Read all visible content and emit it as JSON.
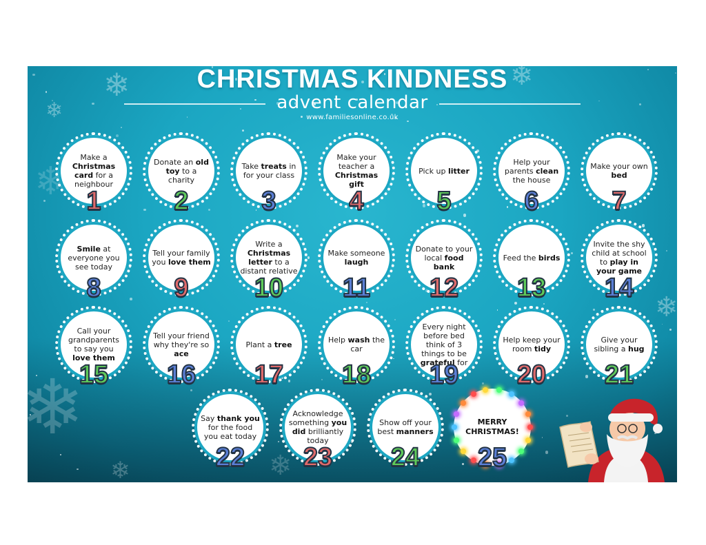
{
  "header": {
    "title": "CHRISTMAS KINDNESS",
    "subtitle": "advent calendar",
    "website": "www.familiesonline.co.uk"
  },
  "colors": {
    "background": "#1ba6c2",
    "number_blue": "#5b7fd6",
    "number_green": "#5fca5a",
    "number_red": "#e06a6a",
    "number_outline": "#233344"
  },
  "days": [
    {
      "number": "1",
      "color": "#e06a6a",
      "parts": [
        {
          "t": "Make a "
        },
        {
          "t": "Christmas card",
          "b": true
        },
        {
          "t": " for a neighbour"
        }
      ]
    },
    {
      "number": "2",
      "color": "#5fca5a",
      "parts": [
        {
          "t": "Donate an "
        },
        {
          "t": "old toy",
          "b": true
        },
        {
          "t": " to a charity"
        }
      ]
    },
    {
      "number": "3",
      "color": "#5b7fd6",
      "parts": [
        {
          "t": "Take "
        },
        {
          "t": "treats",
          "b": true
        },
        {
          "t": " in for your class"
        }
      ]
    },
    {
      "number": "4",
      "color": "#e06a6a",
      "parts": [
        {
          "t": "Make your teacher a "
        },
        {
          "t": "Christmas gift",
          "b": true
        }
      ]
    },
    {
      "number": "5",
      "color": "#5fca5a",
      "parts": [
        {
          "t": "Pick up "
        },
        {
          "t": "litter",
          "b": true
        }
      ]
    },
    {
      "number": "6",
      "color": "#5b7fd6",
      "parts": [
        {
          "t": "Help your parents "
        },
        {
          "t": "clean",
          "b": true
        },
        {
          "t": " the house"
        }
      ]
    },
    {
      "number": "7",
      "color": "#e06a6a",
      "parts": [
        {
          "t": "Make your own "
        },
        {
          "t": "bed",
          "b": true
        }
      ]
    },
    {
      "number": "8",
      "color": "#5b7fd6",
      "parts": [
        {
          "t": "Smile",
          "b": true
        },
        {
          "t": " at everyone you see today"
        }
      ]
    },
    {
      "number": "9",
      "color": "#e06a6a",
      "parts": [
        {
          "t": "Tell your family you "
        },
        {
          "t": "love them",
          "b": true
        }
      ]
    },
    {
      "number": "10",
      "color": "#5fca5a",
      "parts": [
        {
          "t": "Write a "
        },
        {
          "t": "Christmas letter",
          "b": true
        },
        {
          "t": " to a distant relative"
        }
      ]
    },
    {
      "number": "11",
      "color": "#5b7fd6",
      "parts": [
        {
          "t": "Make someone "
        },
        {
          "t": "laugh",
          "b": true
        }
      ]
    },
    {
      "number": "12",
      "color": "#e06a6a",
      "parts": [
        {
          "t": "Donate to your local "
        },
        {
          "t": "food bank",
          "b": true
        }
      ]
    },
    {
      "number": "13",
      "color": "#5fca5a",
      "parts": [
        {
          "t": "Feed the "
        },
        {
          "t": "birds",
          "b": true
        }
      ]
    },
    {
      "number": "14",
      "color": "#5b7fd6",
      "parts": [
        {
          "t": "Invite the shy child at school to "
        },
        {
          "t": "play in your game",
          "b": true
        }
      ]
    },
    {
      "number": "15",
      "color": "#5fca5a",
      "parts": [
        {
          "t": "Call your grandparents to say you "
        },
        {
          "t": "love them",
          "b": true
        }
      ]
    },
    {
      "number": "16",
      "color": "#5b7fd6",
      "parts": [
        {
          "t": "Tell your friend why they're so "
        },
        {
          "t": "ace",
          "b": true
        }
      ]
    },
    {
      "number": "17",
      "color": "#e06a6a",
      "parts": [
        {
          "t": "Plant a "
        },
        {
          "t": "tree",
          "b": true
        }
      ]
    },
    {
      "number": "18",
      "color": "#5fca5a",
      "parts": [
        {
          "t": "Help "
        },
        {
          "t": "wash",
          "b": true
        },
        {
          "t": " the car"
        }
      ]
    },
    {
      "number": "19",
      "color": "#5b7fd6",
      "parts": [
        {
          "t": "Every night before bed think of 3 things to be "
        },
        {
          "t": "grateful",
          "b": true
        },
        {
          "t": " for"
        }
      ]
    },
    {
      "number": "20",
      "color": "#e06a6a",
      "parts": [
        {
          "t": "Help keep your room "
        },
        {
          "t": "tidy",
          "b": true
        }
      ]
    },
    {
      "number": "21",
      "color": "#5fca5a",
      "parts": [
        {
          "t": "Give your sibling a "
        },
        {
          "t": "hug",
          "b": true
        }
      ]
    },
    {
      "number": "22",
      "color": "#5b7fd6",
      "parts": [
        {
          "t": "Say "
        },
        {
          "t": "thank you",
          "b": true
        },
        {
          "t": " for the food you eat today"
        }
      ]
    },
    {
      "number": "23",
      "color": "#e06a6a",
      "parts": [
        {
          "t": "Acknowledge something "
        },
        {
          "t": "you did",
          "b": true
        },
        {
          "t": " brilliantly today"
        }
      ]
    },
    {
      "number": "24",
      "color": "#5fca5a",
      "parts": [
        {
          "t": "Show off your best "
        },
        {
          "t": "manners",
          "b": true
        }
      ]
    }
  ],
  "final_day": {
    "number": "25",
    "color": "#5b7fd6",
    "text": "MERRY CHRISTMAS!"
  },
  "decorations": {
    "santa": "santa-icon",
    "snowflake": "snowflake-icon",
    "lights": "christmas-lights-icon"
  }
}
